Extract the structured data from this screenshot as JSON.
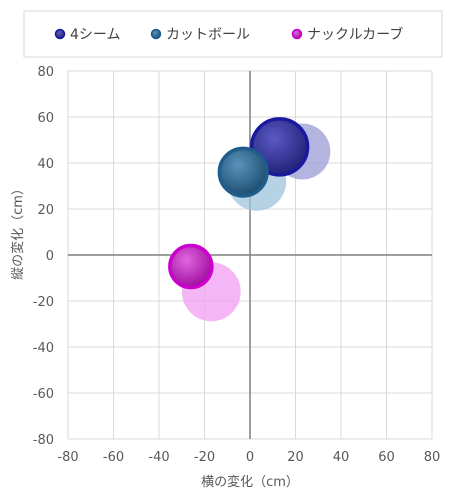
{
  "chart_data": {
    "type": "bubble",
    "xlabel": "横の変化（cm）",
    "ylabel": "縦の変化（cm）",
    "xlim": [
      -80,
      80
    ],
    "ylim": [
      -80,
      80
    ],
    "xticks": [
      -80,
      -60,
      -40,
      -20,
      0,
      20,
      40,
      60,
      80
    ],
    "yticks": [
      -80,
      -60,
      -40,
      -20,
      0,
      20,
      40,
      60,
      80
    ],
    "grid": true,
    "legend_position": "top",
    "series": [
      {
        "name": "4シーム",
        "color": "#3a3a9e",
        "border": "#1a1aa0",
        "points": [
          {
            "x": 13,
            "y": 47,
            "size": 1.0,
            "style": "solid"
          },
          {
            "x": 23,
            "y": 45,
            "size": 1.0,
            "style": "faded"
          }
        ]
      },
      {
        "name": "カットボール",
        "color": "#2e6b94",
        "border": "#1f5e8c",
        "points": [
          {
            "x": -3,
            "y": 36,
            "size": 0.85,
            "style": "solid"
          },
          {
            "x": 3,
            "y": 32,
            "size": 1.05,
            "style": "faded"
          }
        ]
      },
      {
        "name": "ナックルカーブ",
        "color": "#cc33cc",
        "border": "#cc00cc",
        "points": [
          {
            "x": -26,
            "y": -5,
            "size": 0.75,
            "style": "solid"
          },
          {
            "x": -17,
            "y": -16,
            "size": 1.05,
            "style": "faded"
          }
        ]
      }
    ]
  }
}
